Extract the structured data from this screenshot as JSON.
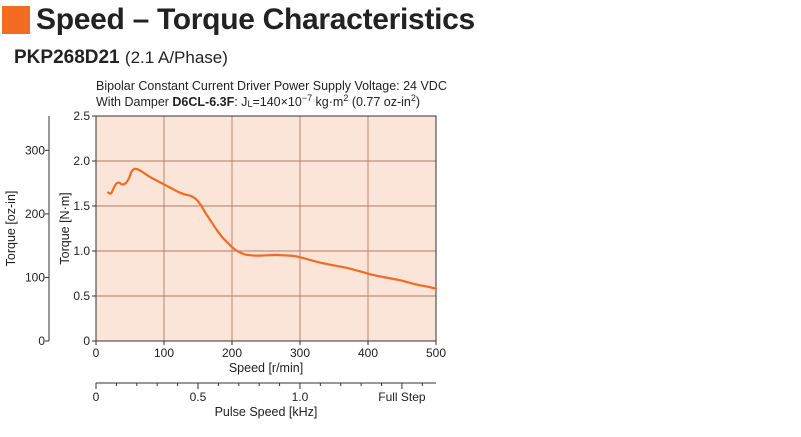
{
  "header": {
    "title": "Speed – Torque Characteristics",
    "model": "PKP268D21",
    "phase": "(2.1 A/Phase)"
  },
  "conditions": {
    "line1": "Bipolar Constant Current Driver  Power Supply Voltage: 24 VDC",
    "prefix": "With Damper ",
    "damper": "D6CL-6.3F",
    "inertia_j": ": J",
    "inertia_sub": "L",
    "inertia_value": "=140×10",
    "inertia_exp": "−7",
    "inertia_unit": " kg·m",
    "inertia_unit_exp": "2",
    "inertia_oz": " (0.77 oz-in",
    "inertia_oz_exp": "2",
    "inertia_close": ")"
  },
  "colors": {
    "accent": "#f26b21",
    "plot_bg": "#fbe5d8",
    "grid": "#b07a66",
    "curve": "#f26b21"
  },
  "chart_data": {
    "type": "line",
    "x_label": "Speed [r/min]",
    "y_label": "Torque [N·m]",
    "y2_label": "Torque [oz-in]",
    "x2_label": "Pulse Speed [kHz]",
    "xlim": [
      0,
      500
    ],
    "ylim": [
      0,
      2.5
    ],
    "y2lim": [
      0,
      354
    ],
    "grid": true,
    "x_ticks": [
      {
        "v": 0,
        "label": "0"
      },
      {
        "v": 100,
        "label": "100"
      },
      {
        "v": 200,
        "label": "200"
      },
      {
        "v": 300,
        "label": "300"
      },
      {
        "v": 400,
        "label": "400"
      },
      {
        "v": 500,
        "label": "500"
      }
    ],
    "y_ticks": [
      {
        "v": 0,
        "label": "0"
      },
      {
        "v": 0.5,
        "label": "0.5"
      },
      {
        "v": 1.0,
        "label": "1.0"
      },
      {
        "v": 1.5,
        "label": "1.5"
      },
      {
        "v": 2.0,
        "label": "2.0"
      },
      {
        "v": 2.5,
        "label": "2.5"
      }
    ],
    "y2_ticks": [
      {
        "v": 0,
        "label": "0"
      },
      {
        "v": 100,
        "label": "100"
      },
      {
        "v": 200,
        "label": "200"
      },
      {
        "v": 300,
        "label": "300"
      }
    ],
    "x2_ticks": [
      {
        "v": 0,
        "label": "0"
      },
      {
        "v": 0.5,
        "label": "0.5"
      },
      {
        "v": 1.0,
        "label": "1.0"
      },
      {
        "v": 1.5,
        "label": "Full Step"
      }
    ],
    "x2lim": [
      0,
      1.667
    ],
    "x2_minor_step": 0.1,
    "series": [
      {
        "x": [
          18,
          22,
          26,
          30,
          34,
          38,
          43,
          48,
          52,
          56,
          60,
          66,
          72,
          80,
          90,
          100,
          110,
          120,
          130,
          140,
          148,
          155,
          162,
          170,
          178,
          186,
          194,
          202,
          210,
          220,
          232,
          245,
          258,
          270,
          282,
          295,
          310,
          330,
          350,
          370,
          390,
          410,
          430,
          450,
          470,
          490,
          500
        ],
        "y": [
          1.65,
          1.64,
          1.7,
          1.75,
          1.76,
          1.74,
          1.75,
          1.8,
          1.88,
          1.91,
          1.91,
          1.89,
          1.86,
          1.82,
          1.78,
          1.74,
          1.7,
          1.66,
          1.63,
          1.61,
          1.57,
          1.5,
          1.41,
          1.32,
          1.23,
          1.15,
          1.09,
          1.03,
          0.99,
          0.96,
          0.95,
          0.95,
          0.955,
          0.955,
          0.95,
          0.94,
          0.91,
          0.87,
          0.84,
          0.81,
          0.77,
          0.73,
          0.7,
          0.67,
          0.63,
          0.6,
          0.58
        ]
      }
    ]
  }
}
